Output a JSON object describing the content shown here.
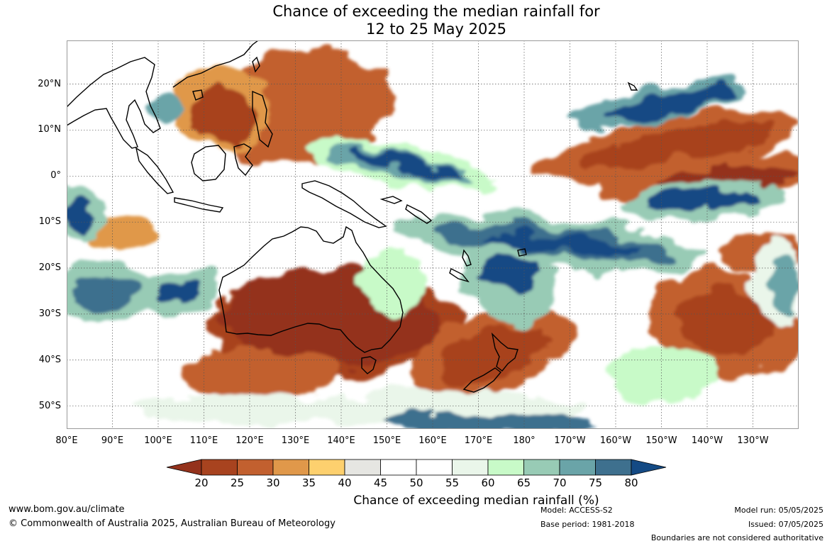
{
  "title": {
    "line1": "Chance of exceeding the median rainfall for",
    "line2": "12 to 25 May 2025"
  },
  "map": {
    "lon_labels": [
      "80°E",
      "90°E",
      "100°E",
      "110°E",
      "120°E",
      "130°E",
      "140°E",
      "150°E",
      "160°E",
      "170°E",
      "180°",
      "170°W",
      "160°W",
      "150°W",
      "140°W",
      "130°W"
    ],
    "lat_labels": [
      "20°N",
      "10°N",
      "0°",
      "10°S",
      "20°S",
      "30°S",
      "40°S",
      "50°S"
    ],
    "lon_range": [
      80,
      240
    ],
    "lat_range": [
      -55,
      29.5
    ]
  },
  "colorbar": {
    "ticks": [
      "20",
      "25",
      "30",
      "35",
      "40",
      "45",
      "50",
      "55",
      "60",
      "65",
      "70",
      "75",
      "80"
    ],
    "colors": [
      "#94321c",
      "#a8431f",
      "#c2602f",
      "#e0984a",
      "#fdd06e",
      "#e6e6e2",
      "#ffffff",
      "#ffffff",
      "#eaf6ea",
      "#c8fac8",
      "#98cbb5",
      "#6aa4a8",
      "#3e708e",
      "#144a84"
    ],
    "label": "Chance of exceeding median rainfall (%)"
  },
  "footer": {
    "website": "www.bom.gov.au/climate",
    "copyright": "© Commonwealth of Australia 2025, Australian Bureau of Meteorology",
    "model": "Model: ACCESS-S2",
    "base_period": "Base period: 1981-2018",
    "model_run": "Model run: 05/05/2025",
    "issued": "Issued: 07/05/2025",
    "disclaimer": "Boundaries are not considered authoritative"
  }
}
